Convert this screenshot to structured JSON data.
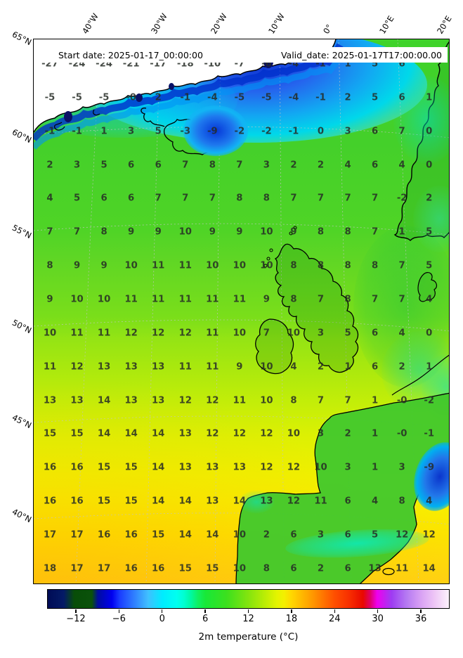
{
  "figure": {
    "start_date_label": "Start date: 2025-01-17_00:00:00",
    "valid_date_label": "Valid_date: 2025-01-17T17:00:00.00",
    "caption": "2m temperature (°C)"
  },
  "axes": {
    "top_ticks": [
      "40°W",
      "30°W",
      "20°W",
      "10°W",
      "0°",
      "10°E",
      "20°E"
    ],
    "left_ticks": [
      "65°N",
      "60°N",
      "55°N",
      "50°N",
      "45°N",
      "40°N"
    ]
  },
  "chart_data": {
    "type": "heatmap",
    "title": "",
    "caption": "2m temperature (°C)",
    "annotations": {
      "start_date": "Start date: 2025-01-17_00:00:00",
      "valid_date": "Valid_date: 2025-01-17T17:00:00.00"
    },
    "lon_ticks": [
      "40°W",
      "30°W",
      "20°W",
      "10°W",
      "0°",
      "10°E",
      "20°E"
    ],
    "lat_ticks": [
      "65°N",
      "60°N",
      "55°N",
      "50°N",
      "45°N",
      "40°N"
    ],
    "grid_values": [
      [
        "-27",
        "-24",
        "-24",
        "-21",
        "-17",
        "-18",
        "-10",
        "-7",
        "-6",
        "-4",
        "-1",
        "1",
        "5",
        "6",
        ""
      ],
      [
        "-5",
        "-5",
        "-5",
        "-0",
        "2",
        "-1",
        "-4",
        "-5",
        "-5",
        "-4",
        "-1",
        "2",
        "5",
        "6",
        "1"
      ],
      [
        "-1",
        "-1",
        "1",
        "3",
        "5",
        "-3",
        "-9",
        "-2",
        "-2",
        "-1",
        "0",
        "3",
        "6",
        "7",
        "0"
      ],
      [
        "2",
        "3",
        "5",
        "6",
        "6",
        "7",
        "8",
        "7",
        "3",
        "2",
        "2",
        "4",
        "6",
        "4",
        "0"
      ],
      [
        "4",
        "5",
        "6",
        "6",
        "7",
        "7",
        "7",
        "8",
        "8",
        "7",
        "7",
        "7",
        "7",
        "-2",
        "2"
      ],
      [
        "7",
        "7",
        "8",
        "9",
        "9",
        "10",
        "9",
        "9",
        "10",
        "9",
        "8",
        "8",
        "7",
        "1",
        "5"
      ],
      [
        "8",
        "9",
        "9",
        "10",
        "11",
        "11",
        "10",
        "10",
        "10",
        "8",
        "8",
        "8",
        "8",
        "7",
        "5"
      ],
      [
        "9",
        "10",
        "10",
        "11",
        "11",
        "11",
        "11",
        "11",
        "9",
        "8",
        "7",
        "8",
        "7",
        "7",
        "4"
      ],
      [
        "10",
        "11",
        "11",
        "12",
        "12",
        "12",
        "11",
        "10",
        "7",
        "10",
        "3",
        "5",
        "6",
        "4",
        "0"
      ],
      [
        "11",
        "12",
        "13",
        "13",
        "13",
        "11",
        "11",
        "9",
        "10",
        "4",
        "2",
        "1",
        "6",
        "2",
        "1"
      ],
      [
        "13",
        "13",
        "14",
        "13",
        "13",
        "12",
        "12",
        "11",
        "10",
        "8",
        "7",
        "7",
        "1",
        "-0",
        "-2"
      ],
      [
        "15",
        "15",
        "14",
        "14",
        "14",
        "13",
        "12",
        "12",
        "12",
        "10",
        "3",
        "2",
        "1",
        "-0",
        "-1"
      ],
      [
        "16",
        "16",
        "15",
        "15",
        "14",
        "13",
        "13",
        "13",
        "12",
        "12",
        "10",
        "3",
        "1",
        "3",
        "-9"
      ],
      [
        "16",
        "16",
        "15",
        "15",
        "14",
        "14",
        "13",
        "14",
        "13",
        "12",
        "11",
        "6",
        "4",
        "8",
        "4"
      ],
      [
        "17",
        "17",
        "16",
        "16",
        "15",
        "14",
        "14",
        "10",
        "2",
        "6",
        "3",
        "6",
        "5",
        "12",
        "12"
      ],
      [
        "18",
        "17",
        "17",
        "16",
        "16",
        "15",
        "15",
        "10",
        "8",
        "6",
        "2",
        "6",
        "13",
        "11",
        "14"
      ]
    ],
    "colorbar": {
      "label": "2m temperature (°C)",
      "tick_labels": [
        "−12",
        "−6",
        "0",
        "6",
        "12",
        "18",
        "24",
        "30",
        "36"
      ],
      "tick_values": [
        -12,
        -6,
        0,
        6,
        12,
        18,
        24,
        30,
        36
      ],
      "value_range": [
        -16,
        40
      ],
      "gradient_stops": [
        {
          "pos": 0,
          "color": "#000c56"
        },
        {
          "pos": 4,
          "color": "#041a66"
        },
        {
          "pos": 6.6,
          "color": "#084d08"
        },
        {
          "pos": 11,
          "color": "#0a520a"
        },
        {
          "pos": 12.5,
          "color": "#000ca0"
        },
        {
          "pos": 16,
          "color": "#0000f0"
        },
        {
          "pos": 17.9,
          "color": "#1a3cff"
        },
        {
          "pos": 21.4,
          "color": "#2f7cff"
        },
        {
          "pos": 25,
          "color": "#40c0ff"
        },
        {
          "pos": 28.6,
          "color": "#00ecff"
        },
        {
          "pos": 32.1,
          "color": "#00fff0"
        },
        {
          "pos": 34,
          "color": "#00ffd0"
        },
        {
          "pos": 35.7,
          "color": "#00f8a0"
        },
        {
          "pos": 37.5,
          "color": "#10f060"
        },
        {
          "pos": 39.3,
          "color": "#18e838"
        },
        {
          "pos": 44.6,
          "color": "#3ce01e"
        },
        {
          "pos": 50,
          "color": "#84e40e"
        },
        {
          "pos": 53.6,
          "color": "#b4ec06"
        },
        {
          "pos": 57.1,
          "color": "#e4f400"
        },
        {
          "pos": 58.9,
          "color": "#f4f000"
        },
        {
          "pos": 60.7,
          "color": "#ffd800"
        },
        {
          "pos": 66,
          "color": "#ff9800"
        },
        {
          "pos": 71.4,
          "color": "#ff5000"
        },
        {
          "pos": 75,
          "color": "#f83000"
        },
        {
          "pos": 78.6,
          "color": "#e80800"
        },
        {
          "pos": 80.4,
          "color": "#e0006a"
        },
        {
          "pos": 82.1,
          "color": "#ee00ee"
        },
        {
          "pos": 85.7,
          "color": "#9e3cf2"
        },
        {
          "pos": 89.3,
          "color": "#b478f2"
        },
        {
          "pos": 92.9,
          "color": "#d8a0f4"
        },
        {
          "pos": 96.4,
          "color": "#eec6f6"
        },
        {
          "pos": 100,
          "color": "#fcf2fc"
        }
      ]
    }
  }
}
